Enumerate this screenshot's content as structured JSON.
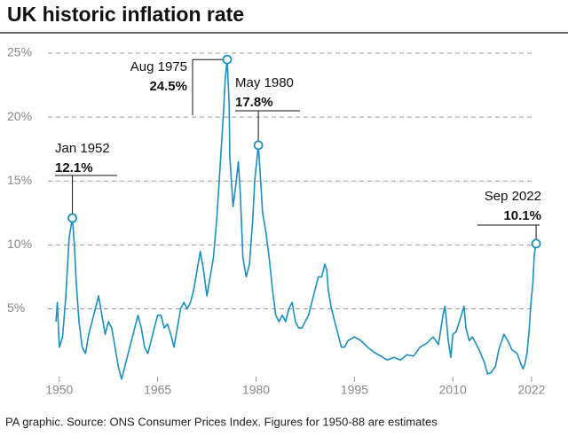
{
  "chart_data": {
    "type": "line",
    "title": "UK historic inflation rate",
    "footnote": "PA graphic. Source: ONS Consumer Prices Index. Figures for 1950-88 are estimates",
    "color": "#1a8fc2",
    "x": [
      1949.5,
      1949.7,
      1950,
      1950.5,
      1951,
      1951.5,
      1951.8,
      1952.0,
      1952.3,
      1952.6,
      1953,
      1953.5,
      1954,
      1954.5,
      1955,
      1955.5,
      1956,
      1956.5,
      1957,
      1957.5,
      1958,
      1958.5,
      1959,
      1959.5,
      1960,
      1960.5,
      1961,
      1961.5,
      1962,
      1962.5,
      1963,
      1963.5,
      1964,
      1964.5,
      1965,
      1965.5,
      1966,
      1966.5,
      1967,
      1967.5,
      1968,
      1968.5,
      1969,
      1969.5,
      1970,
      1970.5,
      1971,
      1971.5,
      1972,
      1972.5,
      1973,
      1973.5,
      1974,
      1974.5,
      1975,
      1975.3,
      1975.6,
      1975.9,
      1976,
      1976.5,
      1977,
      1977.3,
      1977.6,
      1978,
      1978.5,
      1979,
      1979.5,
      1979.8,
      1980.35,
      1980.7,
      1981,
      1981.5,
      1982,
      1982.5,
      1983,
      1983.5,
      1984,
      1984.5,
      1985,
      1985.5,
      1986,
      1986.5,
      1987,
      1987.5,
      1988,
      1988.5,
      1989,
      1989.5,
      1990,
      1990.5,
      1990.8,
      1991,
      1991.5,
      1992,
      1992.5,
      1993,
      1993.5,
      1994,
      1995,
      1996,
      1997,
      1998,
      1999,
      2000,
      2001,
      2002,
      2003,
      2004,
      2005,
      2006,
      2007,
      2007.8,
      2008.5,
      2008.8,
      2009.3,
      2009.7,
      2010,
      2010.5,
      2011,
      2011.7,
      2012,
      2012.5,
      2013,
      2014,
      2014.8,
      2015.3,
      2015.8,
      2016.5,
      2017,
      2017.8,
      2018.5,
      2019,
      2019.8,
      2020.3,
      2020.7,
      2021,
      2021.3,
      2021.6,
      2021.9,
      2022.2,
      2022.4,
      2022.6,
      2022.7
    ],
    "values": [
      4.0,
      5.5,
      2.0,
      2.8,
      6,
      10.5,
      11.5,
      12.1,
      10,
      7,
      4,
      2,
      1.5,
      3,
      4,
      5,
      6,
      4.5,
      3,
      4,
      3.5,
      2,
      0.5,
      -0.5,
      0.5,
      1.5,
      2.5,
      3.5,
      4.5,
      3.5,
      2,
      1.5,
      2.5,
      3.5,
      4.5,
      4.5,
      3.5,
      3.8,
      3,
      2,
      3.5,
      5,
      5.5,
      5,
      5.5,
      6.5,
      8,
      9.5,
      8,
      6,
      7.5,
      9,
      12,
      16,
      20,
      23,
      24.5,
      21,
      17,
      13,
      15,
      16.5,
      14,
      9,
      7.5,
      8.5,
      12,
      15,
      17.8,
      15,
      12.5,
      11,
      9,
      6.5,
      4.5,
      4,
      4.5,
      4,
      5,
      5.5,
      4,
      3.5,
      3.5,
      4,
      4.5,
      5.5,
      6.5,
      7.5,
      7.5,
      8.5,
      8,
      6.5,
      5,
      4,
      3,
      2,
      2,
      2.5,
      2.8,
      2.5,
      2,
      1.6,
      1.3,
      1,
      1.2,
      1,
      1.4,
      1.3,
      2,
      2.3,
      2.8,
      2.2,
      4.5,
      5.2,
      2.5,
      1.2,
      3,
      3.2,
      4,
      5.2,
      3.5,
      2.5,
      2.8,
      1.8,
      0.8,
      -0.1,
      0,
      0.5,
      1.8,
      3.0,
      2.4,
      1.8,
      1.5,
      0.8,
      0.3,
      0.7,
      1.5,
      3.1,
      5.4,
      7,
      9.1,
      9.9,
      10.1
    ],
    "xlim": [
      1948,
      2023.5
    ],
    "xticks": [
      1950,
      1965,
      1980,
      1995,
      2010,
      2022
    ],
    "ylim": [
      -1,
      25
    ],
    "yticks": [
      {
        "value": 5,
        "label": "5%"
      },
      {
        "value": 10,
        "label": "10%"
      },
      {
        "value": 15,
        "label": "15%"
      },
      {
        "value": 20,
        "label": "20%"
      },
      {
        "value": 25,
        "label": "25%"
      }
    ],
    "grid": true,
    "annotations": [
      {
        "x": 1952.0,
        "date": "Jan 1952",
        "value": 12.1,
        "value_label": "12.1%"
      },
      {
        "x": 1975.6,
        "date": "Aug 1975",
        "value": 24.5,
        "value_label": "24.5%"
      },
      {
        "x": 1980.35,
        "date": "May 1980",
        "value": 17.8,
        "value_label": "17.8%"
      },
      {
        "x": 2022.7,
        "date": "Sep 2022",
        "value": 10.1,
        "value_label": "10.1%"
      }
    ]
  }
}
